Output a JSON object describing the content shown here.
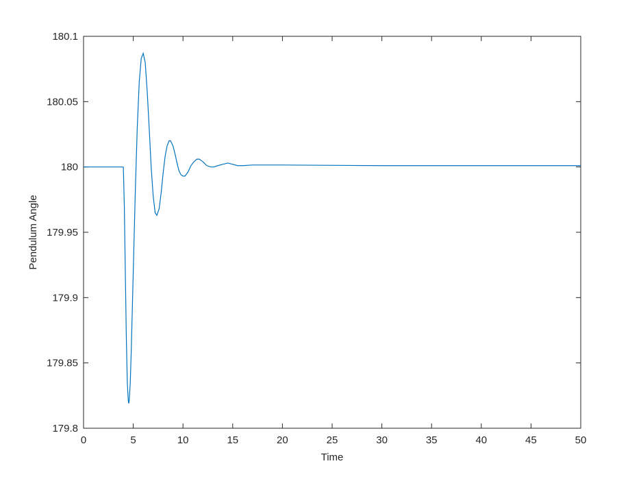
{
  "chart_data": {
    "type": "line",
    "xlabel": "Time",
    "ylabel": "Pendulum Angle",
    "x": [
      0,
      4,
      4.1,
      4.2,
      4.3,
      4.4,
      4.5,
      4.55,
      4.6,
      4.7,
      4.8,
      5.0,
      5.2,
      5.4,
      5.6,
      5.8,
      6.0,
      6.2,
      6.4,
      6.6,
      6.8,
      7.0,
      7.2,
      7.37,
      7.6,
      7.8,
      8.0,
      8.2,
      8.4,
      8.6,
      8.75,
      9.0,
      9.2,
      9.4,
      9.6,
      9.8,
      10.0,
      10.2,
      10.5,
      10.8,
      11.1,
      11.4,
      11.64,
      12.0,
      12.4,
      12.8,
      13.1,
      13.5,
      14.0,
      14.5,
      15.0,
      15.5,
      16,
      17,
      20,
      30,
      40,
      50
    ],
    "series": [
      {
        "color": "#0072bd",
        "values": [
          180,
          180,
          179.97,
          179.92,
          179.87,
          179.835,
          179.821,
          179.819,
          179.822,
          179.835,
          179.86,
          179.92,
          179.98,
          180.03,
          180.065,
          180.083,
          180.087,
          180.08,
          180.058,
          180.03,
          180.0,
          179.978,
          179.965,
          179.963,
          179.968,
          179.98,
          179.995,
          180.008,
          180.016,
          180.02,
          180.02,
          180.016,
          180.01,
          180.003,
          179.997,
          179.994,
          179.993,
          179.993,
          179.996,
          180.001,
          180.004,
          180.006,
          180.006,
          180.004,
          180.001,
          180.0,
          180.0,
          180.001,
          180.002,
          180.003,
          180.002,
          180.001,
          180.001,
          180.0015,
          180.0015,
          180.001,
          180.001,
          180.001
        ]
      }
    ],
    "xlim": [
      0,
      50
    ],
    "xticks": [
      0,
      5,
      10,
      15,
      20,
      25,
      30,
      35,
      40,
      45,
      50
    ],
    "ylim": [
      179.8,
      180.1
    ],
    "yticks": [
      179.8,
      179.85,
      179.9,
      179.95,
      180,
      180.05,
      180.1
    ],
    "grid": false
  }
}
